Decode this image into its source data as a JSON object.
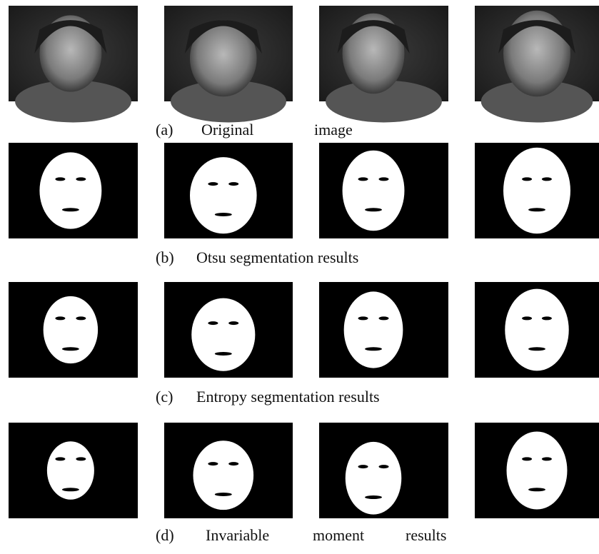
{
  "rows": [
    {
      "label": "(a)",
      "words": [
        "Original",
        "image"
      ]
    },
    {
      "label": "(b)",
      "words": [
        "Otsu segmentation results"
      ]
    },
    {
      "label": "(c)",
      "words": [
        "Entropy segmentation results"
      ]
    },
    {
      "label": "(d)",
      "words": [
        "Invariable",
        "moment",
        "results"
      ]
    }
  ]
}
